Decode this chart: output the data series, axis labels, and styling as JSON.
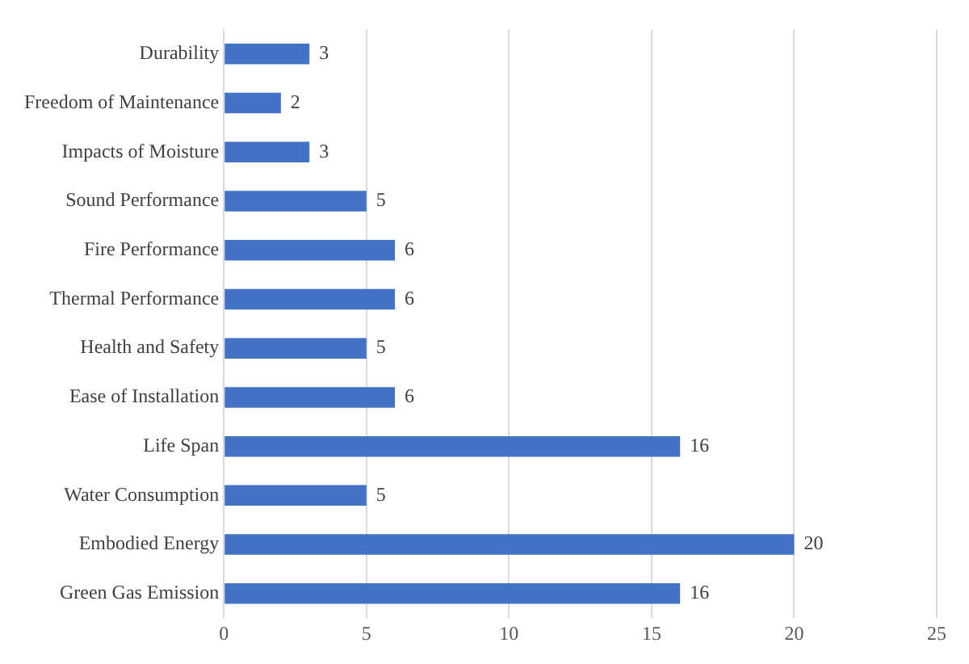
{
  "chart_data": {
    "type": "bar",
    "orientation": "horizontal",
    "categories": [
      "Durability",
      "Freedom of Maintenance",
      "Impacts of Moisture",
      "Sound Performance",
      "Fire Performance",
      "Thermal Performance",
      "Health and Safety",
      "Ease of Installation",
      "Life Span",
      "Water Consumption",
      "Embodied Energy",
      "Green Gas Emission"
    ],
    "values": [
      3,
      2,
      3,
      5,
      6,
      6,
      5,
      6,
      16,
      5,
      20,
      16
    ],
    "color": "#4472c4",
    "xlim": [
      0,
      25
    ],
    "xticks": [
      0,
      5,
      10,
      15,
      20,
      25
    ],
    "grid": "x",
    "data_labels": true,
    "legend": false
  }
}
